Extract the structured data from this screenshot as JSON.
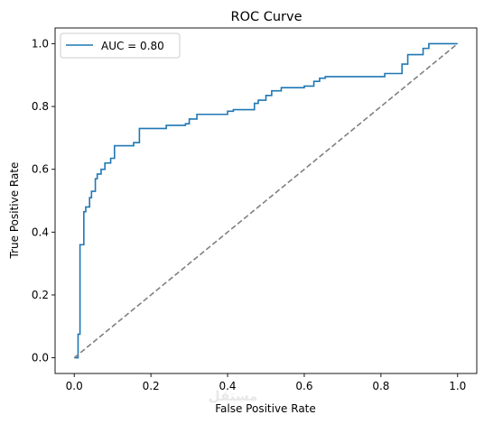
{
  "chart_data": {
    "type": "line",
    "title": "ROC Curve",
    "xlabel": "False Positive Rate",
    "ylabel": "True Positive Rate",
    "xlim": [
      -0.05,
      1.05
    ],
    "ylim": [
      -0.05,
      1.05
    ],
    "xticks": [
      0.0,
      0.2,
      0.4,
      0.6,
      0.8,
      1.0
    ],
    "yticks": [
      0.0,
      0.2,
      0.4,
      0.6,
      0.8,
      1.0
    ],
    "xtick_labels": [
      "0.0",
      "0.2",
      "0.4",
      "0.6",
      "0.8",
      "1.0"
    ],
    "ytick_labels": [
      "0.0",
      "0.2",
      "0.4",
      "0.6",
      "0.8",
      "1.0"
    ],
    "grid": false,
    "legend_position": "top-left",
    "series": [
      {
        "name": "AUC = 0.80",
        "color": "#1f77b4",
        "style": "solid",
        "step": true,
        "x": [
          0.0,
          0.01,
          0.01,
          0.015,
          0.015,
          0.025,
          0.025,
          0.03,
          0.03,
          0.04,
          0.04,
          0.045,
          0.045,
          0.055,
          0.055,
          0.06,
          0.06,
          0.07,
          0.07,
          0.08,
          0.08,
          0.095,
          0.095,
          0.105,
          0.105,
          0.115,
          0.115,
          0.155,
          0.155,
          0.17,
          0.17,
          0.24,
          0.24,
          0.29,
          0.29,
          0.3,
          0.3,
          0.32,
          0.32,
          0.4,
          0.4,
          0.415,
          0.415,
          0.47,
          0.47,
          0.48,
          0.48,
          0.5,
          0.5,
          0.515,
          0.515,
          0.54,
          0.54,
          0.6,
          0.6,
          0.625,
          0.625,
          0.64,
          0.64,
          0.655,
          0.655,
          0.81,
          0.81,
          0.855,
          0.855,
          0.87,
          0.87,
          0.91,
          0.91,
          0.925,
          0.925,
          0.98,
          0.98,
          1.0
        ],
        "y": [
          0.0,
          0.0,
          0.075,
          0.075,
          0.36,
          0.36,
          0.465,
          0.465,
          0.48,
          0.48,
          0.51,
          0.51,
          0.53,
          0.53,
          0.57,
          0.57,
          0.585,
          0.585,
          0.6,
          0.6,
          0.62,
          0.62,
          0.635,
          0.635,
          0.675,
          0.675,
          0.675,
          0.675,
          0.685,
          0.685,
          0.73,
          0.73,
          0.74,
          0.74,
          0.745,
          0.745,
          0.76,
          0.76,
          0.775,
          0.775,
          0.785,
          0.785,
          0.79,
          0.79,
          0.81,
          0.81,
          0.82,
          0.82,
          0.835,
          0.835,
          0.85,
          0.85,
          0.86,
          0.86,
          0.865,
          0.865,
          0.88,
          0.88,
          0.89,
          0.89,
          0.895,
          0.895,
          0.905,
          0.905,
          0.935,
          0.935,
          0.965,
          0.965,
          0.985,
          0.985,
          1.0,
          1.0,
          1.0,
          1.0
        ]
      },
      {
        "color": "#808080",
        "style": "dashed",
        "x": [
          0.0,
          1.0
        ],
        "y": [
          0.0,
          1.0
        ]
      }
    ],
    "legend_label": "AUC = 0.80",
    "watermark": "مستقل"
  }
}
